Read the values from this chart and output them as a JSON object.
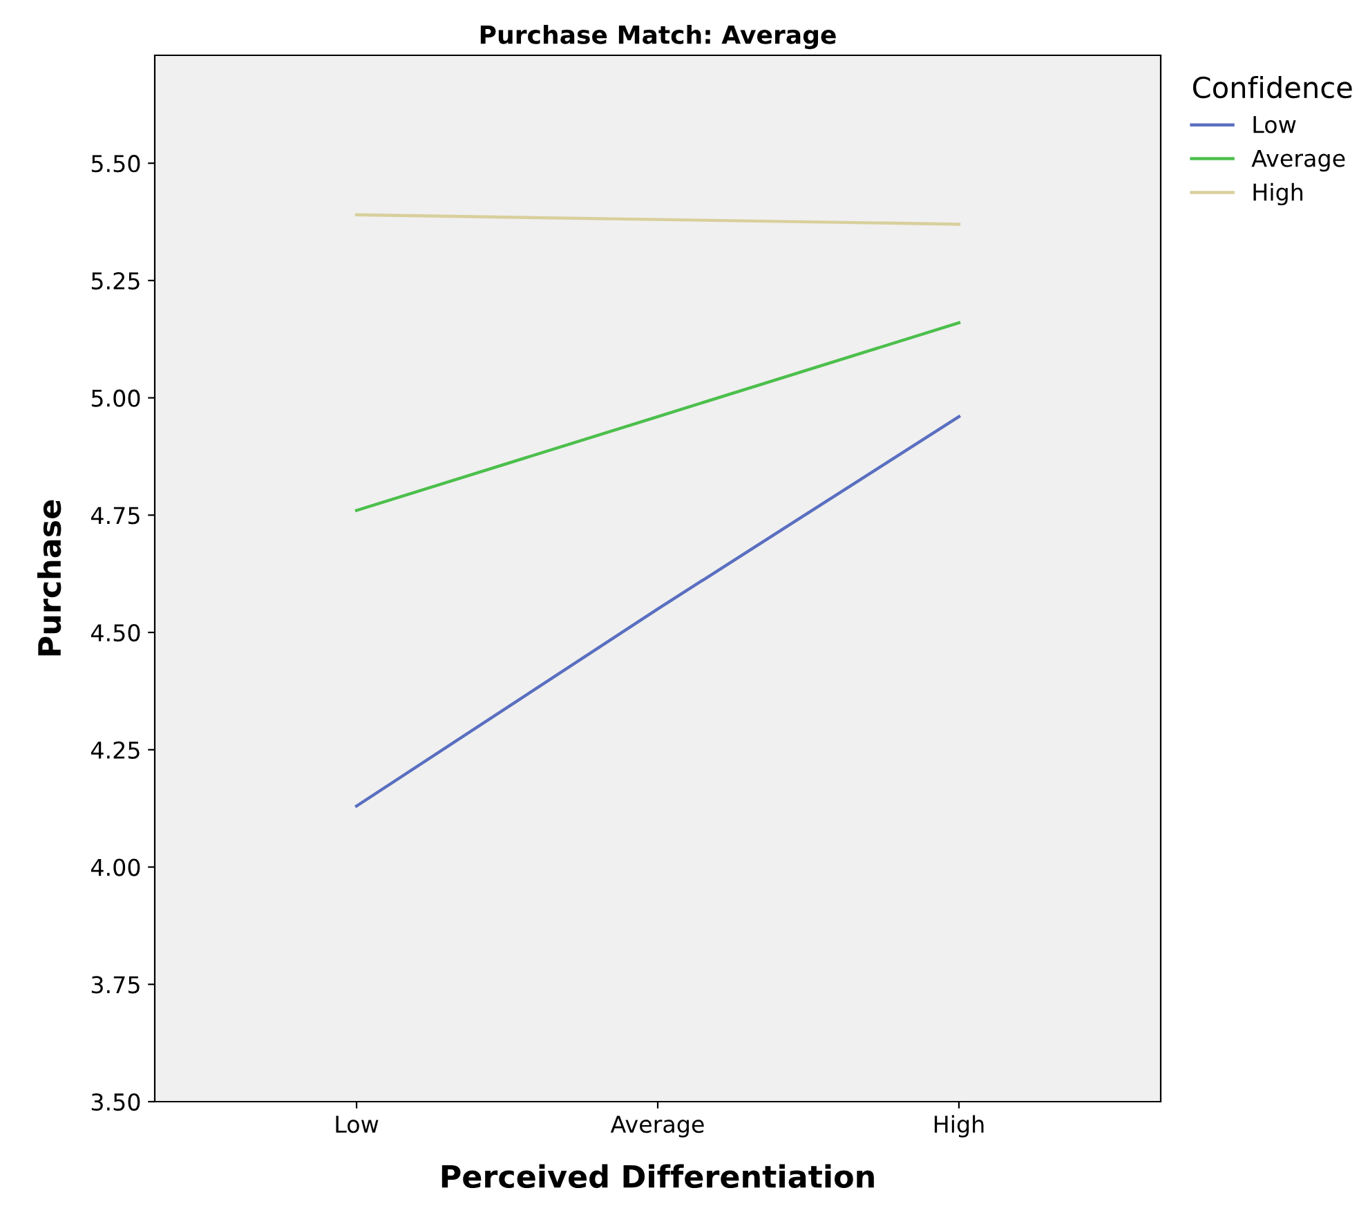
{
  "chart_data": {
    "type": "line",
    "title": "Purchase Match: Average",
    "xlabel": "Perceived Differentiation",
    "ylabel": "Purchase",
    "legend_title": "Confidence",
    "categories": [
      "Low",
      "Average",
      "High"
    ],
    "series": [
      {
        "name": "Low",
        "color": "#5a6fc0",
        "values": [
          4.13,
          4.55,
          4.96
        ]
      },
      {
        "name": "Average",
        "color": "#4cbf4c",
        "values": [
          4.76,
          4.96,
          5.16
        ]
      },
      {
        "name": "High",
        "color": "#d8cf9c",
        "values": [
          5.39,
          5.38,
          5.37
        ]
      }
    ],
    "ylim": [
      3.5,
      5.73
    ],
    "yticks": [
      {
        "value": 3.5,
        "label": "3.50"
      },
      {
        "value": 3.75,
        "label": "3.75"
      },
      {
        "value": 4.0,
        "label": "4.00"
      },
      {
        "value": 4.25,
        "label": "4.25"
      },
      {
        "value": 4.5,
        "label": "4.50"
      },
      {
        "value": 4.75,
        "label": "4.75"
      },
      {
        "value": 5.0,
        "label": "5.00"
      },
      {
        "value": 5.25,
        "label": "5.25"
      },
      {
        "value": 5.5,
        "label": "5.50"
      }
    ],
    "grid": false,
    "legend": "top right",
    "marker": "none",
    "line_style": "solid"
  }
}
